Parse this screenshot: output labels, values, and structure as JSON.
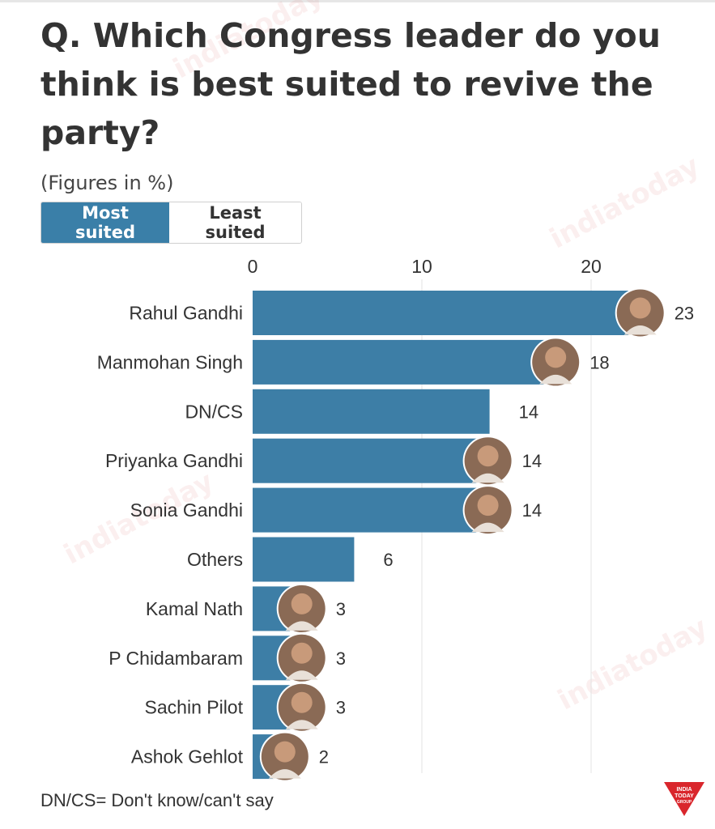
{
  "title": "Q. Which Congress leader do you think is best suited to revive the party?",
  "subtitle": "(Figures in %)",
  "toggle": {
    "most": "Most suited",
    "least": "Least suited"
  },
  "footnote": "DN/CS= Don't know/can't say",
  "watermark": "indiatoday",
  "logo": {
    "line1": "INDIA",
    "line2": "TODAY",
    "line3": "GROUP"
  },
  "colors": {
    "bar": "#3d7ea6",
    "grid": "#e3e3e3",
    "text": "#333333",
    "active": "#3a7fa8"
  },
  "chart_data": {
    "type": "bar",
    "orientation": "horizontal",
    "categories": [
      "Rahul Gandhi",
      "Manmohan Singh",
      "DN/CS",
      "Priyanka Gandhi",
      "Sonia Gandhi",
      "Others",
      "Kamal Nath",
      "P Chidambaram",
      "Sachin Pilot",
      "Ashok Gehlot"
    ],
    "values": [
      23,
      18,
      14,
      14,
      14,
      6,
      3,
      3,
      3,
      2
    ],
    "has_photo": [
      true,
      true,
      false,
      true,
      true,
      false,
      true,
      true,
      true,
      true
    ],
    "xticks": [
      0,
      10,
      20
    ],
    "xlim": [
      0,
      25
    ],
    "grid": true,
    "axis_position": "top"
  }
}
